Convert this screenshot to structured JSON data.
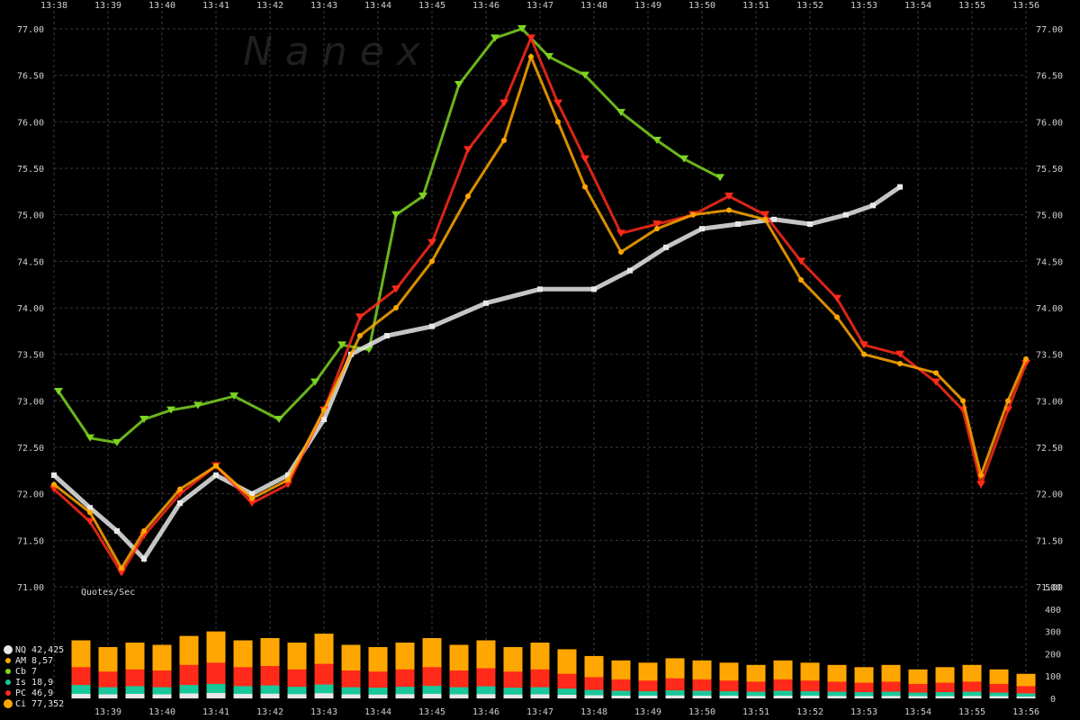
{
  "watermark": "N a n e x",
  "chart_data": [
    {
      "type": "scatter",
      "title": "",
      "xlabel": "",
      "ylabel": "",
      "x_ticks": [
        "13:38",
        "13:39",
        "13:40",
        "13:41",
        "13:42",
        "13:43",
        "13:44",
        "13:45",
        "13:46",
        "13:47",
        "13:48",
        "13:49",
        "13:50",
        "13:51",
        "13:52",
        "13:53",
        "13:54",
        "13:55",
        "13:56"
      ],
      "y_ticks": [
        "77.00",
        "76.50",
        "76.00",
        "75.50",
        "75.00",
        "74.50",
        "74.00",
        "73.50",
        "73.00",
        "72.50",
        "72.00",
        "71.50",
        "71.00"
      ],
      "ylim": [
        71.0,
        77.0
      ],
      "xlim": [
        "13:38",
        "13:56"
      ],
      "grid": true,
      "series": [
        {
          "name": "Cb",
          "color": "#7dd321",
          "marker": "triangle-down",
          "x": [
            "13:38:05",
            "13:38:40",
            "13:39:10",
            "13:39:40",
            "13:40:10",
            "13:40:40",
            "13:41:20",
            "13:42:10",
            "13:42:50",
            "13:43:20",
            "13:43:50",
            "13:44:20",
            "13:44:50",
            "13:45:30",
            "13:46:10",
            "13:46:40",
            "13:47:10",
            "13:47:50",
            "13:48:30",
            "13:49:10",
            "13:49:40",
            "13:50:20"
          ],
          "y": [
            73.1,
            72.6,
            72.55,
            72.8,
            72.9,
            72.95,
            73.05,
            72.8,
            73.2,
            73.6,
            73.55,
            75.0,
            75.2,
            76.4,
            76.9,
            77.0,
            76.7,
            76.5,
            76.1,
            75.8,
            75.6,
            75.4
          ]
        },
        {
          "name": "NQ",
          "color": "#e8e8e8",
          "marker": "square",
          "x": [
            "13:38:00",
            "13:38:40",
            "13:39:10",
            "13:39:40",
            "13:40:20",
            "13:41:00",
            "13:41:40",
            "13:42:20",
            "13:43:00",
            "13:43:30",
            "13:44:10",
            "13:45:00",
            "13:46:00",
            "13:47:00",
            "13:48:00",
            "13:48:40",
            "13:49:20",
            "13:50:00",
            "13:50:40",
            "13:51:20",
            "13:52:00",
            "13:52:40",
            "13:53:10",
            "13:53:40"
          ],
          "y": [
            72.2,
            71.85,
            71.6,
            71.3,
            71.9,
            72.2,
            72.0,
            72.2,
            72.8,
            73.5,
            73.7,
            73.8,
            74.05,
            74.2,
            74.2,
            74.4,
            74.65,
            74.85,
            74.9,
            74.95,
            74.9,
            75.0,
            75.1,
            75.3
          ]
        },
        {
          "name": "PC",
          "color": "#ff2a1a",
          "marker": "triangle-down",
          "x": [
            "13:38:00",
            "13:38:40",
            "13:39:15",
            "13:39:40",
            "13:40:20",
            "13:41:00",
            "13:41:40",
            "13:42:20",
            "13:43:00",
            "13:43:40",
            "13:44:20",
            "13:45:00",
            "13:45:40",
            "13:46:20",
            "13:46:50",
            "13:47:20",
            "13:47:50",
            "13:48:30",
            "13:49:10",
            "13:49:50",
            "13:50:30",
            "13:51:10",
            "13:51:50",
            "13:52:30",
            "13:53:00",
            "13:53:40",
            "13:54:20",
            "13:54:50",
            "13:55:10",
            "13:55:40",
            "13:56:00"
          ],
          "y": [
            72.05,
            71.7,
            71.15,
            71.55,
            72.0,
            72.3,
            71.9,
            72.1,
            72.9,
            73.9,
            74.2,
            74.7,
            75.7,
            76.2,
            76.9,
            76.2,
            75.6,
            74.8,
            74.9,
            75.0,
            75.2,
            75.0,
            74.5,
            74.1,
            73.6,
            73.5,
            73.2,
            72.9,
            72.1,
            72.9,
            73.4
          ]
        },
        {
          "name": "Ci",
          "color": "#ffa700",
          "marker": "circle",
          "x": [
            "13:38:00",
            "13:38:40",
            "13:39:15",
            "13:39:40",
            "13:40:20",
            "13:41:00",
            "13:41:40",
            "13:42:20",
            "13:43:00",
            "13:43:40",
            "13:44:20",
            "13:45:00",
            "13:45:40",
            "13:46:20",
            "13:46:50",
            "13:47:20",
            "13:47:50",
            "13:48:30",
            "13:49:10",
            "13:49:50",
            "13:50:30",
            "13:51:10",
            "13:51:50",
            "13:52:30",
            "13:53:00",
            "13:53:40",
            "13:54:20",
            "13:54:50",
            "13:55:10",
            "13:55:40",
            "13:56:00"
          ],
          "y": [
            72.1,
            71.8,
            71.2,
            71.6,
            72.05,
            72.3,
            71.95,
            72.15,
            72.9,
            73.7,
            74.0,
            74.5,
            75.2,
            75.8,
            76.7,
            76.0,
            75.3,
            74.6,
            74.85,
            75.0,
            75.05,
            74.95,
            74.3,
            73.9,
            73.5,
            73.4,
            73.3,
            73.0,
            72.2,
            73.0,
            73.45
          ]
        }
      ]
    },
    {
      "type": "bar",
      "title": "Quotes/Sec",
      "xlabel": "",
      "ylabel": "",
      "x_ticks": [
        "13:39",
        "13:40",
        "13:41",
        "13:42",
        "13:43",
        "13:44",
        "13:45",
        "13:46",
        "13:47",
        "13:48",
        "13:49",
        "13:50",
        "13:51",
        "13:52",
        "13:53",
        "13:54",
        "13:55",
        "13:56"
      ],
      "y_ticks": [
        "500",
        "400",
        "300",
        "200",
        "100",
        "0"
      ],
      "ylim": [
        0,
        500
      ],
      "categories": [
        "13:38:30",
        "13:39:00",
        "13:39:30",
        "13:40:00",
        "13:40:30",
        "13:41:00",
        "13:41:30",
        "13:42:00",
        "13:42:30",
        "13:43:00",
        "13:43:30",
        "13:44:00",
        "13:44:30",
        "13:45:00",
        "13:45:30",
        "13:46:00",
        "13:46:30",
        "13:47:00",
        "13:47:30",
        "13:48:00",
        "13:48:30",
        "13:49:00",
        "13:49:30",
        "13:50:00",
        "13:50:30",
        "13:51:00",
        "13:51:30",
        "13:52:00",
        "13:52:30",
        "13:53:00",
        "13:53:30",
        "13:54:00",
        "13:54:30",
        "13:55:00",
        "13:55:30",
        "13:56:00"
      ],
      "series": [
        {
          "name": "Ci",
          "color": "#ffa700",
          "values": [
            260,
            230,
            250,
            240,
            280,
            300,
            260,
            270,
            250,
            290,
            240,
            230,
            250,
            270,
            240,
            260,
            230,
            250,
            220,
            190,
            170,
            160,
            180,
            170,
            160,
            150,
            170,
            160,
            150,
            140,
            150,
            130,
            140,
            150,
            130,
            110
          ]
        },
        {
          "name": "PC",
          "color": "#ff2a1a",
          "values": [
            140,
            120,
            130,
            125,
            150,
            160,
            140,
            145,
            130,
            155,
            125,
            120,
            130,
            140,
            125,
            135,
            120,
            130,
            110,
            95,
            85,
            80,
            90,
            85,
            80,
            75,
            85,
            80,
            75,
            70,
            75,
            65,
            70,
            75,
            65,
            55
          ]
        },
        {
          "name": "Is",
          "color": "#19c89a",
          "values": [
            60,
            50,
            55,
            50,
            60,
            65,
            55,
            58,
            52,
            62,
            50,
            48,
            52,
            56,
            50,
            54,
            48,
            50,
            44,
            38,
            34,
            32,
            36,
            34,
            32,
            30,
            34,
            32,
            30,
            28,
            30,
            26,
            28,
            30,
            26,
            22
          ]
        },
        {
          "name": "NQ",
          "color": "#e8e8e8",
          "values": [
            20,
            18,
            20,
            18,
            22,
            24,
            20,
            21,
            19,
            23,
            18,
            17,
            19,
            20,
            18,
            19,
            17,
            18,
            16,
            14,
            12,
            12,
            13,
            12,
            12,
            11,
            12,
            12,
            11,
            10,
            11,
            10,
            10,
            11,
            10,
            8
          ]
        }
      ]
    }
  ],
  "legend": [
    {
      "name": "NQ",
      "count": "42,425",
      "color": "#e8e8e8",
      "marker": "circle"
    },
    {
      "name": "AM",
      "count": "8,57",
      "color": "#ffa700",
      "marker": "dot"
    },
    {
      "name": "Cb",
      "count": "7",
      "color": "#7dd321",
      "marker": "dot"
    },
    {
      "name": "Is",
      "count": "18,9",
      "color": "#19c89a",
      "marker": "dot"
    },
    {
      "name": "PC",
      "count": "46,9",
      "color": "#ff2a1a",
      "marker": "dot"
    },
    {
      "name": "Ci",
      "count": "77,352",
      "color": "#ffa700",
      "marker": "circle"
    }
  ]
}
